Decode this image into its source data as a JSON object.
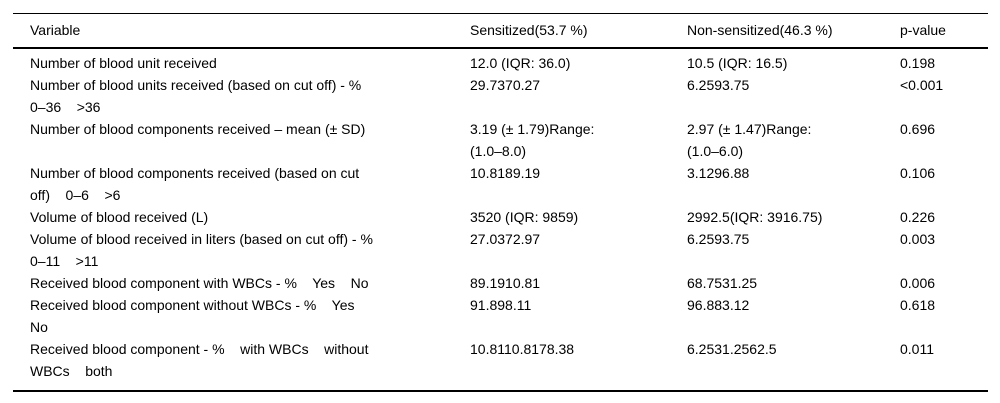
{
  "table": {
    "columns": [
      {
        "label": "Variable"
      },
      {
        "label": "Sensitized(53.7 %)"
      },
      {
        "label": "Non-sensitized(46.3 %)"
      },
      {
        "label": "p-value"
      }
    ],
    "rows": [
      {
        "variable": [
          "Number of blood unit received"
        ],
        "sensitized": [
          "12.0 (IQR: 36.0)"
        ],
        "non_sensitized": [
          "10.5 (IQR: 16.5)"
        ],
        "p_value": [
          "0.198"
        ]
      },
      {
        "variable": [
          "Number of blood units received (based on cut off) - %",
          "0–36    >36"
        ],
        "sensitized": [
          "29.7370.27"
        ],
        "non_sensitized": [
          "6.2593.75"
        ],
        "p_value": [
          "<0.001"
        ]
      },
      {
        "variable": [
          "Number of blood components received – mean (± SD)"
        ],
        "sensitized": [
          "3.19 (± 1.79)Range:",
          "(1.0–8.0)"
        ],
        "non_sensitized": [
          "2.97 (± 1.47)Range:",
          "(1.0–6.0)"
        ],
        "p_value": [
          "0.696"
        ]
      },
      {
        "variable": [
          "Number of blood components received (based on cut",
          "off)    0–6    >6"
        ],
        "sensitized": [
          "10.8189.19"
        ],
        "non_sensitized": [
          "3.1296.88"
        ],
        "p_value": [
          "0.106"
        ]
      },
      {
        "variable": [
          "Volume of blood received (L)"
        ],
        "sensitized": [
          "3520 (IQR: 9859)"
        ],
        "non_sensitized": [
          "2992.5(IQR: 3916.75)"
        ],
        "p_value": [
          "0.226"
        ]
      },
      {
        "variable": [
          "Volume of blood received in liters (based on cut off) - %",
          "0–11    >11"
        ],
        "sensitized": [
          "27.0372.97"
        ],
        "non_sensitized": [
          "6.2593.75"
        ],
        "p_value": [
          "0.003"
        ]
      },
      {
        "variable": [
          "Received blood component with WBCs - %    Yes    No"
        ],
        "sensitized": [
          "89.1910.81"
        ],
        "non_sensitized": [
          "68.7531.25"
        ],
        "p_value": [
          "0.006"
        ]
      },
      {
        "variable": [
          "Received blood component without WBCs - %    Yes",
          "No"
        ],
        "sensitized": [
          "91.898.11"
        ],
        "non_sensitized": [
          "96.883.12"
        ],
        "p_value": [
          "0.618"
        ]
      },
      {
        "variable": [
          "Received blood component - %    with WBCs    without",
          "WBCs    both"
        ],
        "sensitized": [
          "10.8110.8178.38"
        ],
        "non_sensitized": [
          "6.2531.2562.5"
        ],
        "p_value": [
          "0.011"
        ]
      }
    ]
  }
}
